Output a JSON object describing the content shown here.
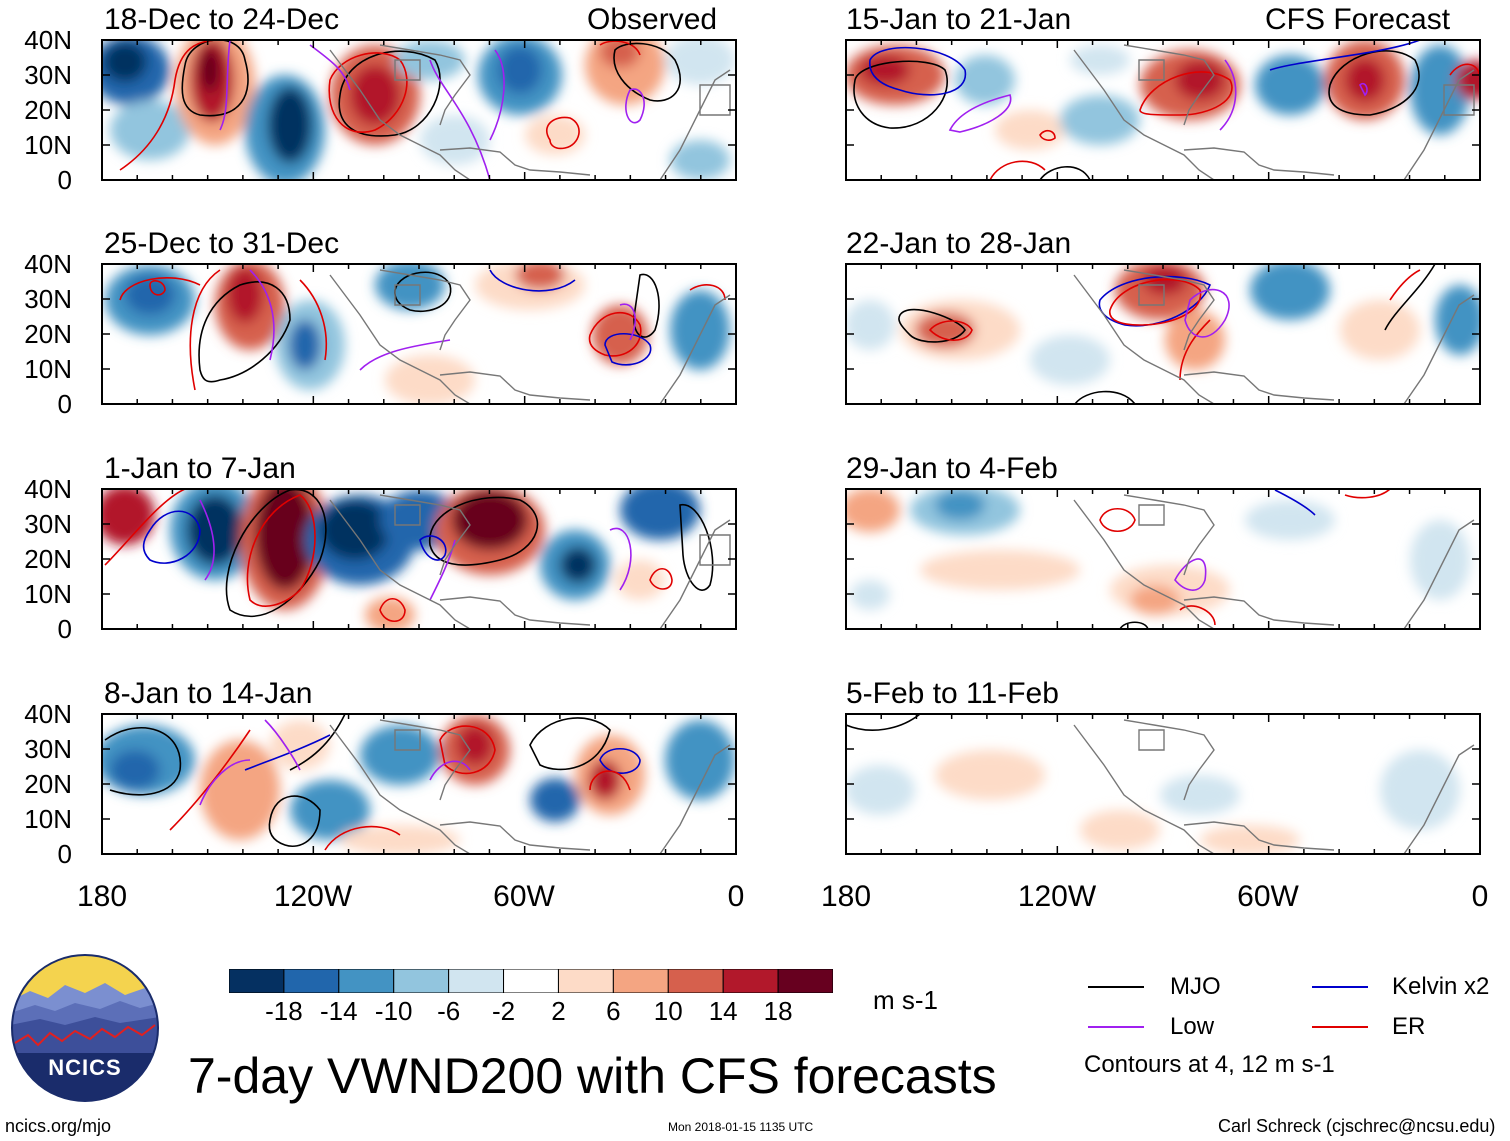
{
  "figure_title": "7-day VWND200 with CFS forecasts",
  "left_header": "Observed",
  "right_header": "CFS Forecast",
  "panels_left": [
    {
      "period": "18-Dec to 24-Dec"
    },
    {
      "period": "25-Dec to 31-Dec"
    },
    {
      "period": "1-Jan to 7-Jan"
    },
    {
      "period": "8-Jan to 14-Jan"
    }
  ],
  "panels_right": [
    {
      "period": "15-Jan to 21-Jan"
    },
    {
      "period": "22-Jan to 28-Jan"
    },
    {
      "period": "29-Jan to 4-Feb"
    },
    {
      "period": "5-Feb to 11-Feb"
    }
  ],
  "lat_labels": [
    "40N",
    "30N",
    "20N",
    "10N",
    "0"
  ],
  "lon_labels": [
    "180",
    "120W",
    "60W",
    "0"
  ],
  "colorbar": {
    "labels": [
      "-18",
      "-14",
      "-10",
      "-6",
      "-2",
      "2",
      "6",
      "10",
      "14",
      "18"
    ],
    "colors": [
      "#053061",
      "#2166ac",
      "#4393c3",
      "#92c5de",
      "#d1e5f0",
      "#ffffff",
      "#fddbc7",
      "#f4a582",
      "#d6604d",
      "#b2182b",
      "#67001f"
    ],
    "units": "m s-1"
  },
  "legend": {
    "items": [
      {
        "label": "MJO",
        "color": "#000000"
      },
      {
        "label": "Kelvin x2",
        "color": "#0000cc"
      },
      {
        "label": "Low",
        "color": "#a020f0"
      },
      {
        "label": "ER",
        "color": "#e00000"
      }
    ],
    "note": "Contours at 4, 12 m s-1"
  },
  "logo_text": "NCICS",
  "footer": {
    "url": "ncics.org/mjo",
    "timestamp": "Mon 2018-01-15 1135 UTC",
    "credit": "Carl Schreck (cjschrec@ncsu.edu)"
  }
}
